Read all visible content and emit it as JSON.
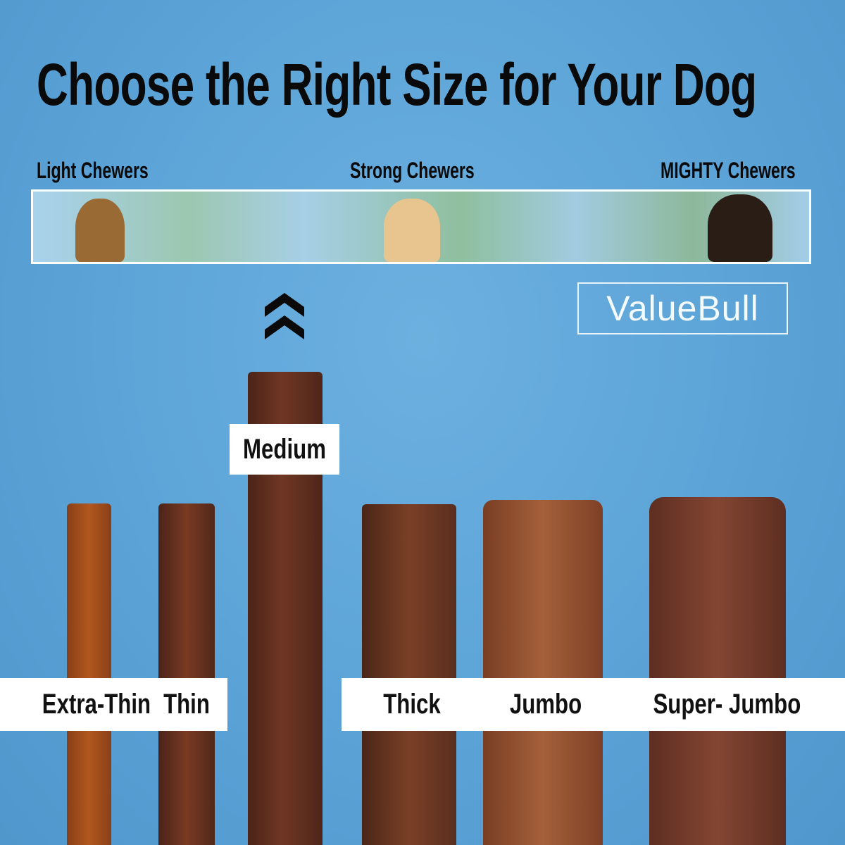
{
  "title": "Choose the Right Size for Your Dog",
  "chewer_levels": [
    "Light Chewers",
    "Strong Chewers",
    "MIGHTY Chewers"
  ],
  "brand": "ValueBull",
  "highlight_icon": "double-chevron-up-icon",
  "sizes": [
    "Extra-Thin",
    "Thin",
    "Medium",
    "Thick",
    "Jumbo",
    "Super- Jumbo"
  ],
  "colors": {
    "background": "#5aa2d6",
    "stick": "#7a3f22",
    "label_box": "#ffffff"
  }
}
